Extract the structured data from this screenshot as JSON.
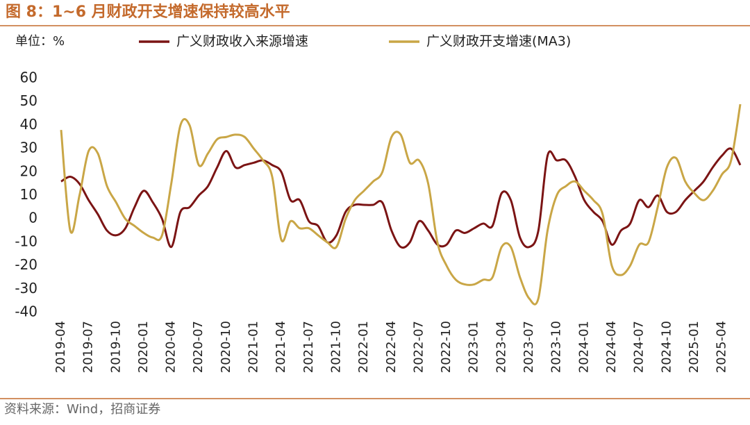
{
  "chart_data": {
    "type": "line",
    "title": "图 8：1~6 月财政开支增速保持较高水平",
    "unit_label": "单位：%",
    "source": "资料来源：Wind，招商证券",
    "categories": [
      "2019-04",
      null,
      null,
      "2019-07",
      null,
      null,
      "2019-10",
      null,
      null,
      "2020-01",
      null,
      null,
      "2020-04",
      null,
      null,
      "2020-07",
      null,
      null,
      "2020-10",
      null,
      null,
      "2021-01",
      null,
      null,
      "2021-04",
      null,
      null,
      "2021-07",
      null,
      null,
      "2021-10",
      null,
      null,
      "2022-01",
      null,
      null,
      "2022-04",
      null,
      null,
      "2022-07",
      null,
      null,
      "2022-10",
      null,
      null,
      "2023-01",
      null,
      null,
      "2023-04",
      null,
      null,
      "2023-07",
      null,
      null,
      "2023-10",
      null,
      null,
      "2024-01",
      null,
      null,
      "2024-04",
      null,
      null,
      "2024-07",
      null,
      null,
      "2024-10",
      null,
      null,
      "2025-01",
      null,
      null,
      "2025-04",
      null,
      null
    ],
    "series": [
      {
        "name": "广义财政收入来源增速",
        "color": "#7b1414",
        "values": [
          16,
          18,
          15,
          8,
          2,
          -5,
          -7,
          -4,
          5,
          12,
          7,
          0,
          -12,
          3,
          5,
          10,
          14,
          22,
          29,
          22,
          23,
          24,
          25,
          23,
          20,
          8,
          8,
          -1,
          -3,
          -10,
          -7,
          3,
          6,
          6,
          6,
          7,
          -5,
          -12,
          -10,
          -1,
          -5,
          -11,
          -11,
          -5,
          -6,
          -4,
          -2,
          -3,
          11,
          8,
          -8,
          -12,
          -5,
          27,
          25,
          25,
          18,
          8,
          3,
          -1,
          -11,
          -5,
          -2,
          8,
          5,
          10,
          3,
          3,
          8,
          12,
          16,
          22,
          27,
          30,
          23
        ]
      },
      {
        "name": "广义财政开支增速(MA3)",
        "color": "#c9a646",
        "values": [
          38,
          -5,
          10,
          29,
          28,
          14,
          7,
          0,
          -3,
          -6,
          -8,
          -7,
          15,
          40,
          40,
          23,
          28,
          34,
          35,
          36,
          35,
          30,
          25,
          18,
          -9,
          -1,
          -4,
          -4,
          -7,
          -10,
          -12,
          0,
          8,
          12,
          16,
          20,
          35,
          36,
          24,
          25,
          15,
          -10,
          -20,
          -26,
          -28,
          -28,
          -26,
          -25,
          -12,
          -12,
          -25,
          -34,
          -34,
          -5,
          10,
          14,
          16,
          12,
          8,
          2,
          -20,
          -24,
          -20,
          -11,
          -10,
          5,
          22,
          26,
          16,
          11,
          8,
          12,
          19,
          25,
          49
        ]
      }
    ],
    "ylim": [
      -40,
      60
    ],
    "yticks": [
      -40,
      -30,
      -20,
      -10,
      0,
      10,
      20,
      30,
      40,
      50,
      60
    ]
  }
}
